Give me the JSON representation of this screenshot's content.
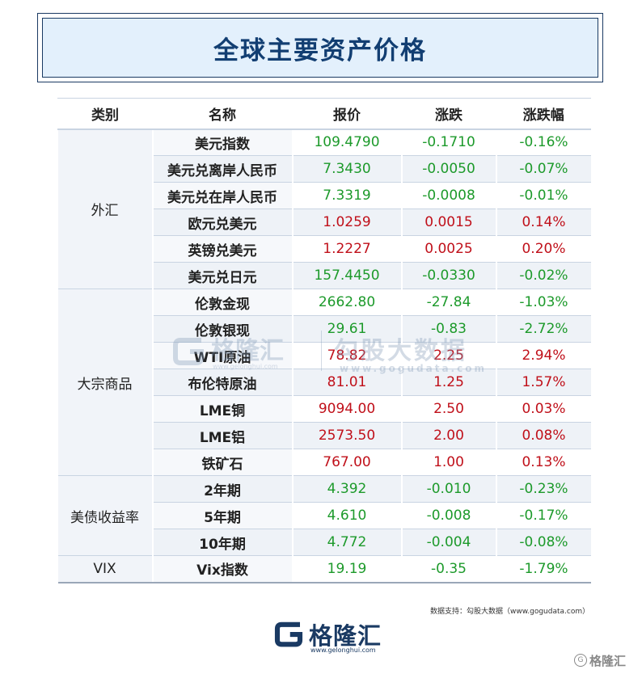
{
  "title": "全球主要资产价格",
  "headers": [
    "类别",
    "名称",
    "报价",
    "涨跌",
    "涨跌幅"
  ],
  "groups": [
    {
      "category": "外汇",
      "rows": [
        {
          "name": "美元指数",
          "price": "109.4790",
          "change": "-0.1710",
          "pct": "-0.16%",
          "dir": "down"
        },
        {
          "name": "美元兑离岸人民币",
          "price": "7.3430",
          "change": "-0.0050",
          "pct": "-0.07%",
          "dir": "down"
        },
        {
          "name": "美元兑在岸人民币",
          "price": "7.3319",
          "change": "-0.0008",
          "pct": "-0.01%",
          "dir": "down"
        },
        {
          "name": "欧元兑美元",
          "price": "1.0259",
          "change": "0.0015",
          "pct": "0.14%",
          "dir": "up"
        },
        {
          "name": "英镑兑美元",
          "price": "1.2227",
          "change": "0.0025",
          "pct": "0.20%",
          "dir": "up"
        },
        {
          "name": "美元兑日元",
          "price": "157.4450",
          "change": "-0.0330",
          "pct": "-0.02%",
          "dir": "down"
        }
      ]
    },
    {
      "category": "大宗商品",
      "rows": [
        {
          "name": "伦敦金现",
          "price": "2662.80",
          "change": "-27.84",
          "pct": "-1.03%",
          "dir": "down"
        },
        {
          "name": "伦敦银现",
          "price": "29.61",
          "change": "-0.83",
          "pct": "-2.72%",
          "dir": "down"
        },
        {
          "name": "WTI原油",
          "price": "78.82",
          "change": "2.25",
          "pct": "2.94%",
          "dir": "up"
        },
        {
          "name": "布伦特原油",
          "price": "81.01",
          "change": "1.25",
          "pct": "1.57%",
          "dir": "up"
        },
        {
          "name": "LME铜",
          "price": "9094.00",
          "change": "2.50",
          "pct": "0.03%",
          "dir": "up"
        },
        {
          "name": "LME铝",
          "price": "2573.50",
          "change": "2.00",
          "pct": "0.08%",
          "dir": "up"
        },
        {
          "name": "铁矿石",
          "price": "767.00",
          "change": "1.00",
          "pct": "0.13%",
          "dir": "up"
        }
      ]
    },
    {
      "category": "美债收益率",
      "rows": [
        {
          "name": "2年期",
          "price": "4.392",
          "change": "-0.010",
          "pct": "-0.23%",
          "dir": "down"
        },
        {
          "name": "5年期",
          "price": "4.610",
          "change": "-0.008",
          "pct": "-0.17%",
          "dir": "down"
        },
        {
          "name": "10年期",
          "price": "4.772",
          "change": "-0.004",
          "pct": "-0.08%",
          "dir": "down"
        }
      ]
    },
    {
      "category": "VIX",
      "rows": [
        {
          "name": "Vix指数",
          "price": "19.19",
          "change": "-0.35",
          "pct": "-1.79%",
          "dir": "down"
        }
      ]
    }
  ],
  "colors": {
    "up": "#c0101a",
    "down": "#1d9a2b",
    "brand": "#1a3a63"
  },
  "watermark": {
    "logo_text": "格隆汇",
    "logo_url": "www.gelonghui.com",
    "right_text": "勾股大数据",
    "right_url": "www.gogudata.com"
  },
  "source": "数据支持：勾股大数据（www.gogudata.com）",
  "footer": {
    "logo_text": "格隆汇",
    "logo_url": "www.gelonghui.com"
  },
  "corner": {
    "text": "格隆汇"
  }
}
